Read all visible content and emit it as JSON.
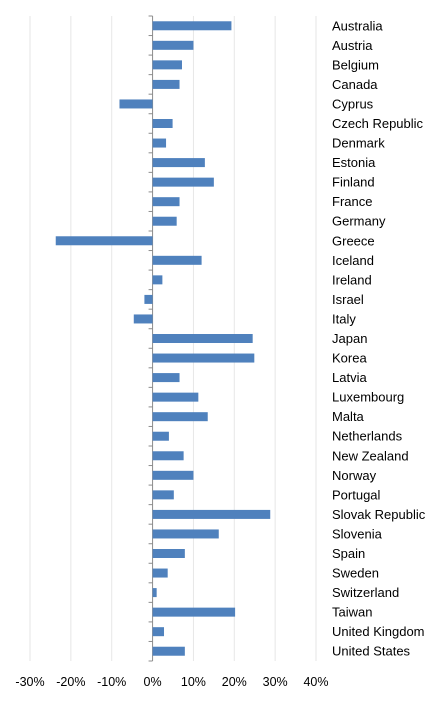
{
  "chart_data": {
    "type": "bar",
    "orientation": "horizontal",
    "categories": [
      "Australia",
      "Austria",
      "Belgium",
      "Canada",
      "Cyprus",
      "Czech Republic",
      "Denmark",
      "Estonia",
      "Finland",
      "France",
      "Germany",
      "Greece",
      "Iceland",
      "Ireland",
      "Israel",
      "Italy",
      "Japan",
      "Korea",
      "Latvia",
      "Luxembourg",
      "Malta",
      "Netherlands",
      "New Zealand",
      "Norway",
      "Portugal",
      "Slovak Republic",
      "Slovenia",
      "Spain",
      "Sweden",
      "Switzerland",
      "Taiwan",
      "United Kingdom",
      "United States"
    ],
    "values": [
      19.3,
      10.0,
      7.2,
      6.6,
      -8.1,
      4.9,
      3.3,
      12.8,
      15.0,
      6.6,
      5.9,
      -23.7,
      12.0,
      2.4,
      -2.0,
      -4.6,
      24.5,
      24.9,
      6.6,
      11.2,
      13.5,
      4.0,
      7.6,
      10.0,
      5.2,
      28.8,
      16.2,
      7.9,
      3.7,
      1.0,
      20.2,
      2.8,
      7.9
    ],
    "xaxis_ticks": [
      "-30%",
      "-20%",
      "-10%",
      "0%",
      "10%",
      "20%",
      "30%",
      "40%"
    ],
    "xlim": [
      -30,
      40
    ],
    "gridlines": "vertical",
    "bar_color": "#4F81BD",
    "category_labels_position": "right"
  }
}
